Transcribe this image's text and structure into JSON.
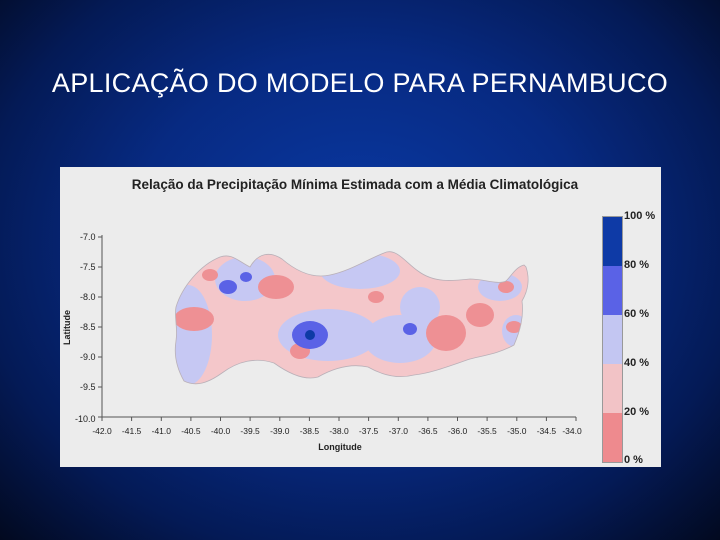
{
  "slide": {
    "title": "APLICAÇÃO DO MODELO PARA PERNAMBUCO"
  },
  "figure": {
    "title": "Relação da Precipitação Mínima Estimada com a Média Climatológica",
    "ylabel": "Latitude",
    "xlabel": "Longitude",
    "y_ticks": [
      "-7.0",
      "-7.5",
      "-8.0",
      "-8.5",
      "-9.0",
      "-9.5",
      "-10.0"
    ],
    "x_ticks": [
      "-42.0",
      "-41.5",
      "-41.0",
      "-40.5",
      "-40.0",
      "-39.5",
      "-39.0",
      "-38.5",
      "-38.0",
      "-37.5",
      "-37.0",
      "-36.5",
      "-36.0",
      "-35.5",
      "-35.0",
      "-34.5",
      "-34.0"
    ],
    "legend": {
      "labels": [
        "100 %",
        "80 %",
        "60 %",
        "40 %",
        "20 %",
        "0 %"
      ],
      "colors_top_to_bottom": [
        "#0e3aa6",
        "#5a62e6",
        "#c3c6f2",
        "#f2c3c6",
        "#ee8a8e"
      ]
    }
  }
}
